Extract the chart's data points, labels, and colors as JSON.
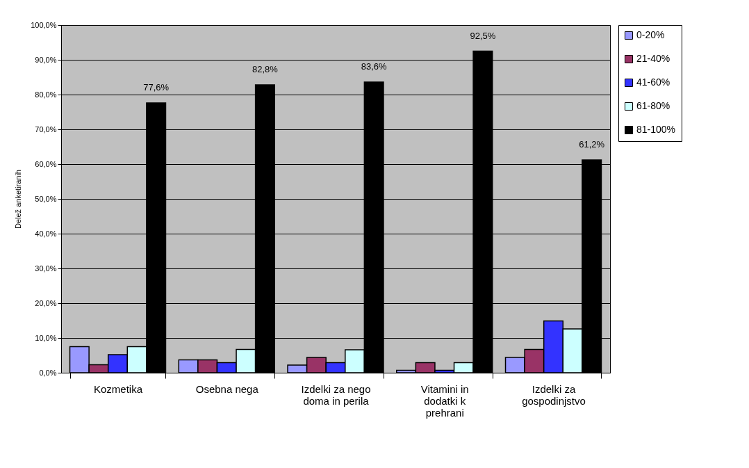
{
  "chart_data": {
    "type": "bar",
    "ylabel": "Delež anketiranih",
    "categories": [
      "Kozmetika",
      "Osebna nega",
      "Izdelki za nego doma in perila",
      "Vitamini in dodatki k prehrani",
      "Izdelki za gospodinjstvo"
    ],
    "series": [
      {
        "name": "0-20%",
        "color": "#9999ff",
        "values": [
          7.5,
          3.7,
          2.2,
          0.7,
          4.4
        ]
      },
      {
        "name": "21-40%",
        "color": "#993366",
        "values": [
          2.3,
          3.7,
          4.4,
          2.9,
          6.7
        ]
      },
      {
        "name": "41-60%",
        "color": "#3333ff",
        "values": [
          5.2,
          2.9,
          2.9,
          0.7,
          14.9
        ]
      },
      {
        "name": "61-80%",
        "color": "#ccffff",
        "values": [
          7.5,
          6.7,
          6.6,
          2.9,
          12.6
        ]
      },
      {
        "name": "81-100%",
        "color": "#000000",
        "values": [
          77.6,
          82.8,
          83.6,
          92.5,
          61.2
        ],
        "value_labels": [
          "77,6%",
          "82,8%",
          "83,6%",
          "92,5%",
          "61,2%"
        ]
      }
    ],
    "ylim": [
      0,
      100
    ],
    "yticks": [
      {
        "value": 0,
        "label": "0,0%"
      },
      {
        "value": 10,
        "label": "10,0%"
      },
      {
        "value": 20,
        "label": "20,0%"
      },
      {
        "value": 30,
        "label": "30,0%"
      },
      {
        "value": 40,
        "label": "40,0%"
      },
      {
        "value": 50,
        "label": "50,0%"
      },
      {
        "value": 60,
        "label": "60,0%"
      },
      {
        "value": 70,
        "label": "70,0%"
      },
      {
        "value": 80,
        "label": "80,0%"
      },
      {
        "value": 90,
        "label": "90,0%"
      },
      {
        "value": 100,
        "label": "100,0%"
      }
    ],
    "grid": "y",
    "legend": "right"
  }
}
